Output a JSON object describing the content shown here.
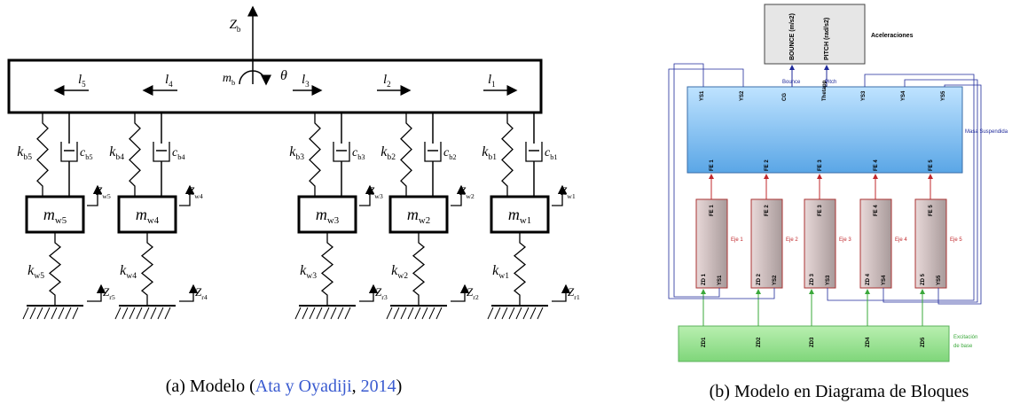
{
  "model_a": {
    "body": {
      "z": {
        "main": "Z",
        "sub": "b"
      },
      "mass": {
        "main": "m",
        "sub": "b"
      },
      "theta": "θ"
    },
    "lengths": [
      {
        "main": "l",
        "sub": "5"
      },
      {
        "main": "l",
        "sub": "4"
      },
      {
        "main": "l",
        "sub": "3"
      },
      {
        "main": "l",
        "sub": "2"
      },
      {
        "main": "l",
        "sub": "1"
      }
    ],
    "units": [
      {
        "kb": {
          "main": "k",
          "sub": "b5"
        },
        "cb": {
          "main": "c",
          "sub": "b5"
        },
        "zw": {
          "main": "Z",
          "sub": "w5"
        },
        "mw": {
          "main": "m",
          "sub": "w5"
        },
        "kw": {
          "main": "k",
          "sub": "w5"
        },
        "zr": {
          "main": "Z",
          "sub": "r5"
        }
      },
      {
        "kb": {
          "main": "k",
          "sub": "b4"
        },
        "cb": {
          "main": "c",
          "sub": "b4"
        },
        "zw": {
          "main": "Z",
          "sub": "w4"
        },
        "mw": {
          "main": "m",
          "sub": "w4"
        },
        "kw": {
          "main": "k",
          "sub": "w4"
        },
        "zr": {
          "main": "Z",
          "sub": "r4"
        }
      },
      {
        "kb": {
          "main": "k",
          "sub": "b3"
        },
        "cb": {
          "main": "c",
          "sub": "b3"
        },
        "zw": {
          "main": "Z",
          "sub": "w3"
        },
        "mw": {
          "main": "m",
          "sub": "w3"
        },
        "kw": {
          "main": "k",
          "sub": "w3"
        },
        "zr": {
          "main": "Z",
          "sub": "r3"
        }
      },
      {
        "kb": {
          "main": "k",
          "sub": "b2"
        },
        "cb": {
          "main": "c",
          "sub": "b2"
        },
        "zw": {
          "main": "Z",
          "sub": "w2"
        },
        "mw": {
          "main": "m",
          "sub": "w2"
        },
        "kw": {
          "main": "k",
          "sub": "w2"
        },
        "zr": {
          "main": "Z",
          "sub": "r2"
        }
      },
      {
        "kb": {
          "main": "k",
          "sub": "b1"
        },
        "cb": {
          "main": "c",
          "sub": "b1"
        },
        "zw": {
          "main": "Z",
          "sub": "w1"
        },
        "mw": {
          "main": "m",
          "sub": "w1"
        },
        "kw": {
          "main": "k",
          "sub": "w1"
        },
        "zr": {
          "main": "Z",
          "sub": "r1"
        }
      }
    ]
  },
  "caption_a": {
    "prefix": "(a) Modelo (",
    "author": "Ata y Oyadiji",
    "sep": ",",
    "year": "2014",
    "suffix": ")"
  },
  "model_b": {
    "output_block": {
      "title": "Aceleraciones",
      "ports": [
        "BOUNCE (m/s2)",
        "PITCH (rad/s2)"
      ],
      "signals": [
        "Bounce",
        "Pitch"
      ]
    },
    "body_block": {
      "title": "Masa Suspendida",
      "outputs": [
        "YS1",
        "YS2",
        "CG",
        "Thetapp",
        "YS3",
        "YS4",
        "YS5"
      ],
      "inputs": [
        "FE 1",
        "FE 2",
        "FE 3",
        "FE 4",
        "FE 5"
      ]
    },
    "axles": [
      {
        "name": "Eje 1",
        "input": "FE 1",
        "outputs": [
          "ZD 1",
          "YS1"
        ]
      },
      {
        "name": "Eje 2",
        "input": "FE 2",
        "outputs": [
          "ZD 2",
          "YS2"
        ]
      },
      {
        "name": "Eje 3",
        "input": "FE 3",
        "outputs": [
          "ZD 3",
          "YS3"
        ]
      },
      {
        "name": "Eje 4",
        "input": "FE 4",
        "outputs": [
          "ZD 4",
          "YS4"
        ]
      },
      {
        "name": "Eje 5",
        "input": "FE 5",
        "outputs": [
          "ZD 5",
          "YS5"
        ]
      }
    ],
    "excitation": {
      "title": [
        "Excitación",
        "de base"
      ],
      "outputs": [
        "ZD1",
        "ZD2",
        "ZD3",
        "ZD4",
        "ZD5"
      ]
    }
  },
  "caption_b": "(b) Modelo en Diagrama de Bloques"
}
